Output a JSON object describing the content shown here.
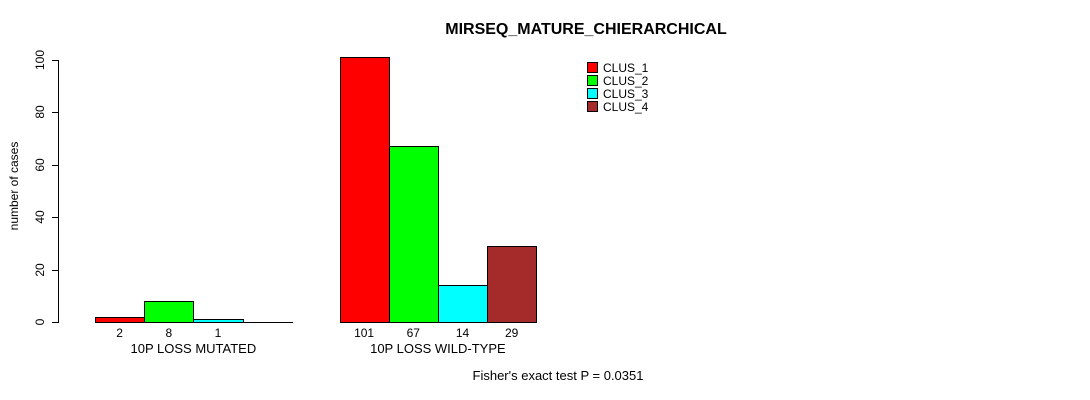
{
  "chart_data": {
    "type": "bar",
    "title": "MIRSEQ_MATURE_CHIERARCHICAL",
    "xlabel": "",
    "ylabel": "number of cases",
    "ylim": [
      0,
      100
    ],
    "yticks": [
      0,
      20,
      40,
      60,
      80,
      100
    ],
    "grid": false,
    "legend_position": "top-right",
    "categories": [
      "10P LOSS MUTATED",
      "10P LOSS WILD-TYPE"
    ],
    "series": [
      {
        "name": "CLUS_1",
        "color": "#ff0000",
        "values": [
          2,
          101
        ]
      },
      {
        "name": "CLUS_2",
        "color": "#00ff00",
        "values": [
          8,
          67
        ]
      },
      {
        "name": "CLUS_3",
        "color": "#00ffff",
        "values": [
          1,
          14
        ]
      },
      {
        "name": "CLUS_4",
        "color": "#a52a2a",
        "values": [
          0,
          29
        ]
      }
    ],
    "bar_labels": [
      [
        "2",
        "8",
        "1",
        ""
      ],
      [
        "101",
        "67",
        "14",
        "29"
      ]
    ],
    "annotation": "Fisher's exact test P = 0.0351"
  }
}
